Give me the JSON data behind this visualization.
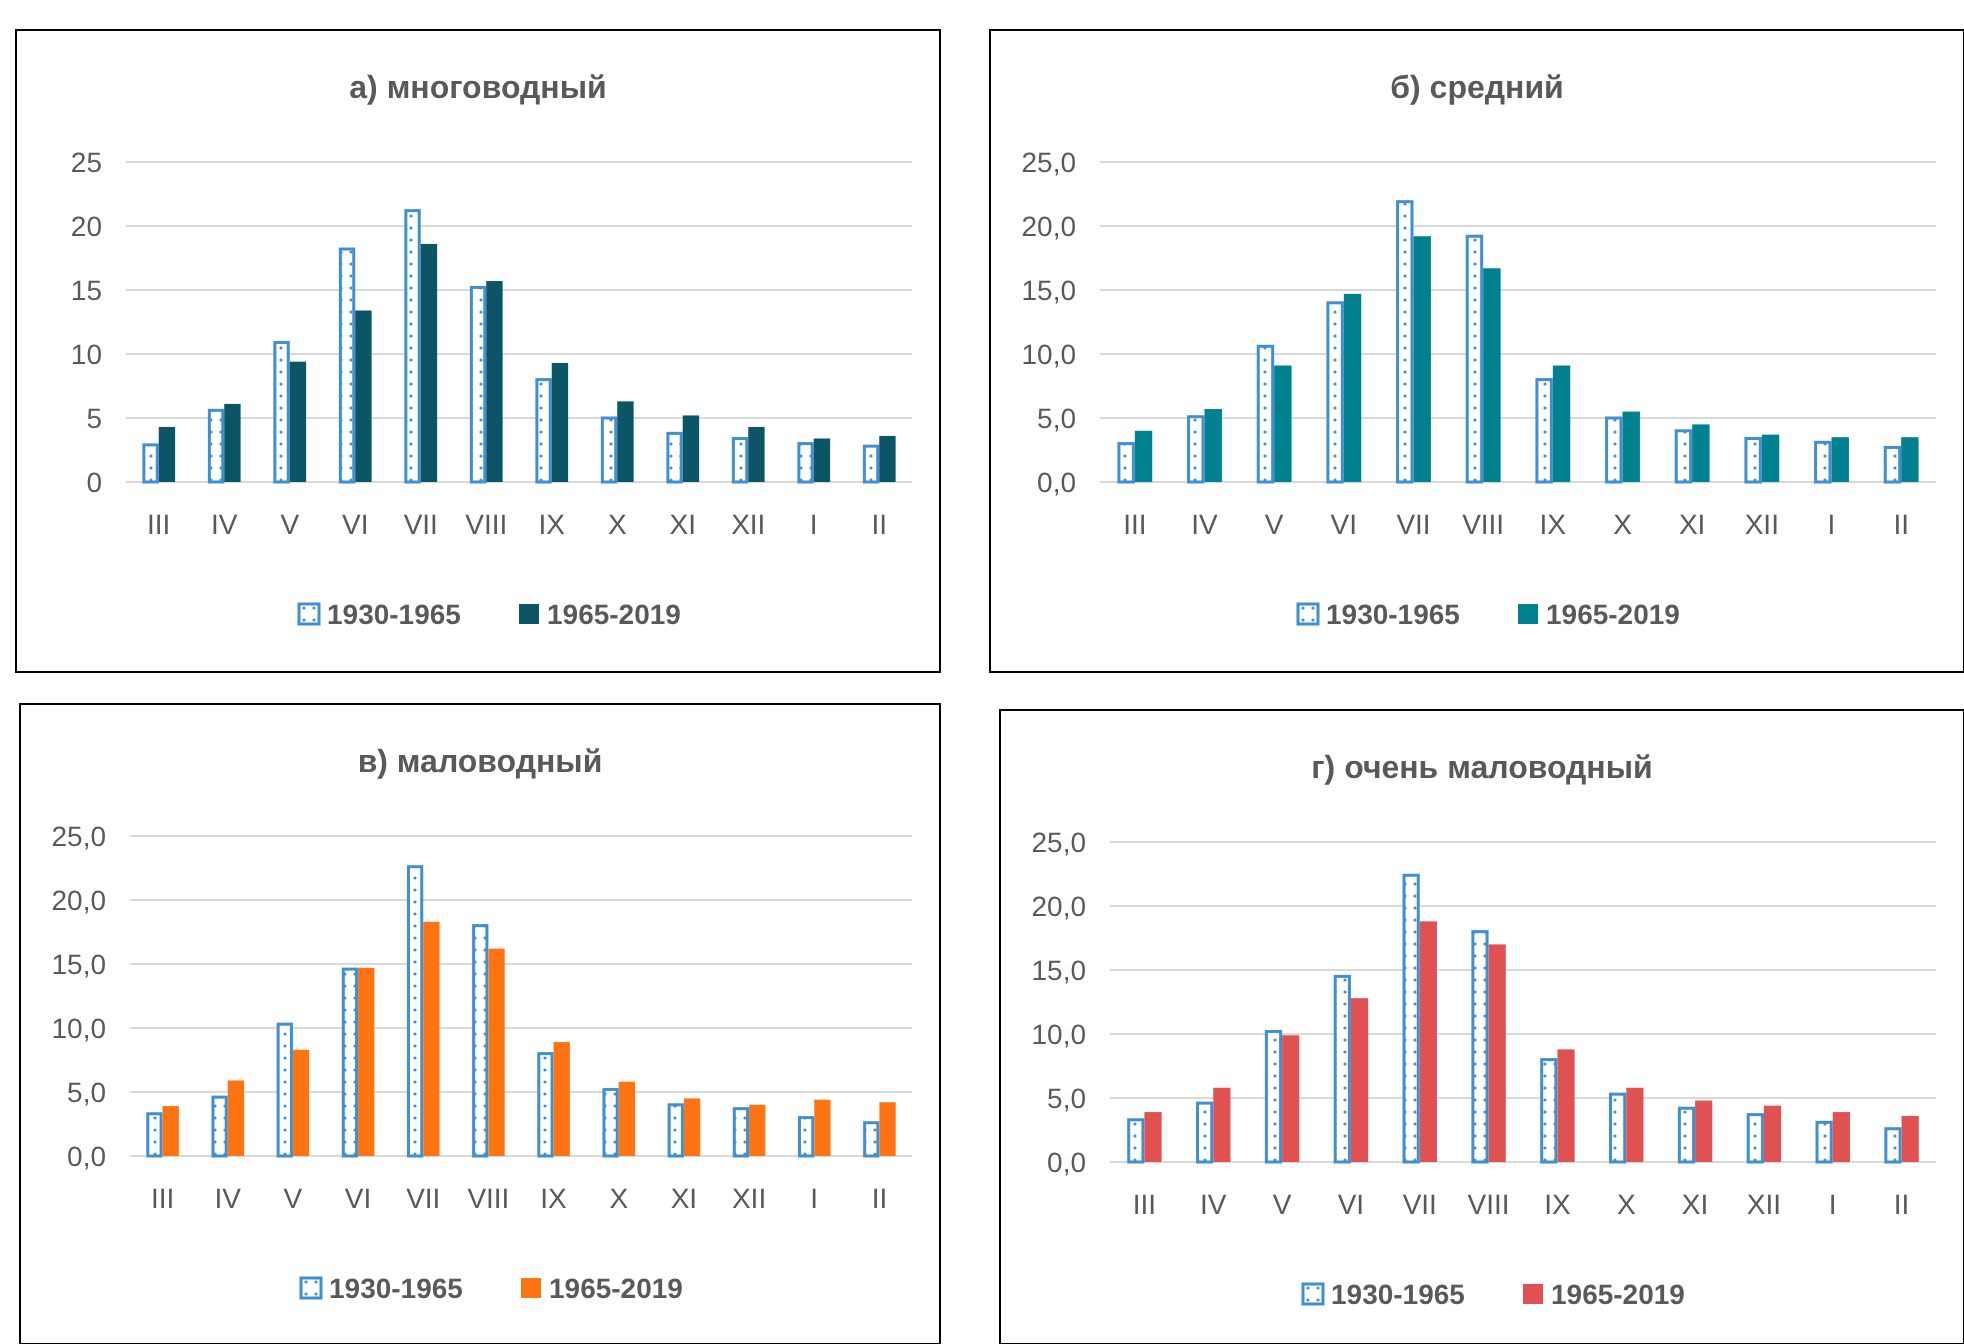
{
  "chart_data": [
    {
      "type": "bar",
      "title": "а) многоводный",
      "categories": [
        "III",
        "IV",
        "V",
        "VI",
        "VII",
        "VIII",
        "IX",
        "X",
        "XI",
        "XII",
        "I",
        "II"
      ],
      "ylim": [
        0,
        25
      ],
      "yticks": [
        0,
        5,
        10,
        15,
        20,
        25
      ],
      "grid": "y",
      "legend": "bottom",
      "series": [
        {
          "name": "1930-1965",
          "color": "#3f8fd2",
          "values": [
            2.9,
            5.6,
            10.9,
            18.2,
            21.2,
            15.2,
            8.0,
            5.0,
            3.8,
            3.4,
            3.0,
            2.8
          ]
        },
        {
          "name": "1965-2019",
          "color": "#0c5566",
          "values": [
            4.3,
            6.1,
            9.4,
            13.4,
            18.6,
            15.7,
            9.3,
            6.3,
            5.2,
            4.3,
            3.4,
            3.6
          ]
        }
      ]
    },
    {
      "type": "bar",
      "title": "б) средний",
      "categories": [
        "III",
        "IV",
        "V",
        "VI",
        "VII",
        "VIII",
        "IX",
        "X",
        "XI",
        "XII",
        "I",
        "II"
      ],
      "ylim": [
        0,
        25
      ],
      "yticks": [
        {
          "value": 0,
          "label": "0,0"
        },
        {
          "value": 5,
          "label": "5,0"
        },
        {
          "value": 10,
          "label": "10,0"
        },
        {
          "value": 15,
          "label": "15,0"
        },
        {
          "value": 20,
          "label": "20,0"
        },
        {
          "value": 25,
          "label": "25,0"
        }
      ],
      "grid": "y",
      "legend": "bottom",
      "series": [
        {
          "name": "1930-1965",
          "color": "#3f8fd2",
          "values": [
            3.0,
            5.1,
            10.6,
            14.0,
            21.9,
            19.2,
            8.0,
            5.0,
            4.0,
            3.4,
            3.1,
            2.7
          ]
        },
        {
          "name": "1965-2019",
          "color": "#00818f",
          "values": [
            4.0,
            5.7,
            9.1,
            14.7,
            19.2,
            16.7,
            9.1,
            5.5,
            4.5,
            3.7,
            3.5,
            3.5
          ]
        }
      ]
    },
    {
      "type": "bar",
      "title": "в) маловодный",
      "categories": [
        "III",
        "IV",
        "V",
        "VI",
        "VII",
        "VIII",
        "IX",
        "X",
        "XI",
        "XII",
        "I",
        "II"
      ],
      "ylim": [
        0,
        25
      ],
      "yticks": [
        {
          "value": 0,
          "label": "0,0"
        },
        {
          "value": 5,
          "label": "5,0"
        },
        {
          "value": 10,
          "label": "10,0"
        },
        {
          "value": 15,
          "label": "15,0"
        },
        {
          "value": 20,
          "label": "20,0"
        },
        {
          "value": 25,
          "label": "25,0"
        }
      ],
      "grid": "y",
      "legend": "bottom",
      "series": [
        {
          "name": "1930-1965",
          "color": "#3f8fd2",
          "values": [
            3.3,
            4.6,
            10.3,
            14.6,
            22.6,
            18.0,
            8.0,
            5.2,
            4.0,
            3.7,
            3.0,
            2.6
          ]
        },
        {
          "name": "1965-2019",
          "color": "#ff7412",
          "values": [
            3.9,
            5.9,
            8.3,
            14.7,
            18.3,
            16.2,
            8.9,
            5.8,
            4.5,
            4.0,
            4.4,
            4.2
          ]
        }
      ]
    },
    {
      "type": "bar",
      "title": "г) очень маловодный",
      "categories": [
        "III",
        "IV",
        "V",
        "VI",
        "VII",
        "VIII",
        "IX",
        "X",
        "XI",
        "XII",
        "I",
        "II"
      ],
      "ylim": [
        0,
        25
      ],
      "yticks": [
        {
          "value": 0,
          "label": "0,0"
        },
        {
          "value": 5,
          "label": "5,0"
        },
        {
          "value": 10,
          "label": "10,0"
        },
        {
          "value": 15,
          "label": "15,0"
        },
        {
          "value": 20,
          "label": "20,0"
        },
        {
          "value": 25,
          "label": "25,0"
        }
      ],
      "grid": "y",
      "legend": "bottom",
      "series": [
        {
          "name": "1930-1965",
          "color": "#3f8fd2",
          "values": [
            3.3,
            4.6,
            10.2,
            14.5,
            22.4,
            18.0,
            8.0,
            5.3,
            4.2,
            3.7,
            3.1,
            2.6
          ]
        },
        {
          "name": "1965-2019",
          "color": "#e05252",
          "values": [
            3.9,
            5.8,
            9.9,
            12.8,
            18.8,
            17.0,
            8.8,
            5.8,
            4.8,
            4.4,
            3.9,
            3.6
          ]
        }
      ]
    }
  ]
}
